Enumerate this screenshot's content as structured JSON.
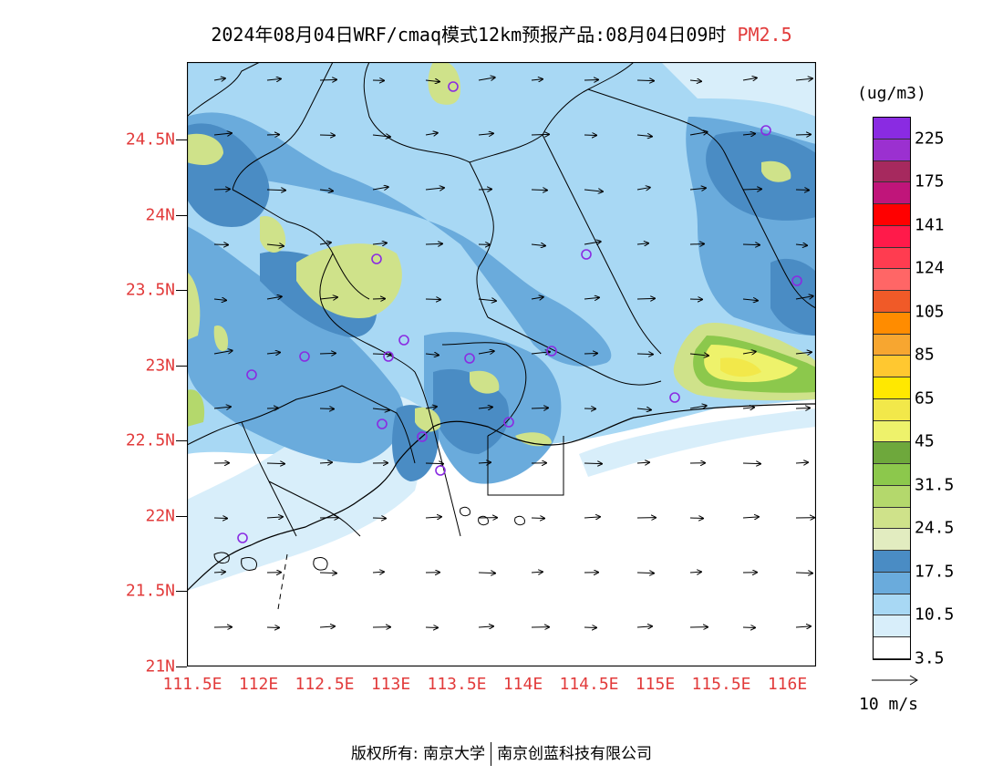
{
  "title": {
    "main": "2024年08月04日WRF/cmaq模式12km预报产品:08月04日09时",
    "pollutant": "PM2.5"
  },
  "lat_ticks": [
    "24.5N",
    "24N",
    "23.5N",
    "23N",
    "22.5N",
    "22N",
    "21.5N",
    "21N"
  ],
  "lon_ticks": [
    "111.5E",
    "112E",
    "112.5E",
    "113E",
    "113.5E",
    "114E",
    "114.5E",
    "115E",
    "115.5E",
    "116E"
  ],
  "legend": {
    "unit": "(ug/m3)",
    "labels": [
      "225",
      "175",
      "141",
      "124",
      "105",
      "85",
      "65",
      "45",
      "31.5",
      "24.5",
      "17.5",
      "10.5",
      "3.5"
    ],
    "colors": [
      "#8a2be2",
      "#9b30d0",
      "#a6295e",
      "#c0157a",
      "#ff0000",
      "#ff1a4a",
      "#ff3c50",
      "#ff6666",
      "#f05a28",
      "#ff8c00",
      "#f7a630",
      "#ffc830",
      "#ffe800",
      "#f2e84a",
      "#eef26b",
      "#6ea83c",
      "#8cc84c",
      "#b4d86c",
      "#cfe28a",
      "#e2ecc0",
      "#4a8cc4",
      "#6aabdc",
      "#a8d8f4",
      "#d8eefa",
      "#ffffff"
    ]
  },
  "wind_reference": "10 m/s",
  "footer": {
    "copyright": "版权所有: 南京大学",
    "company": "南京创蓝科技有限公司"
  },
  "colors": {
    "axis_label": "#e23b3b",
    "station_marker": "#8a2be2"
  }
}
